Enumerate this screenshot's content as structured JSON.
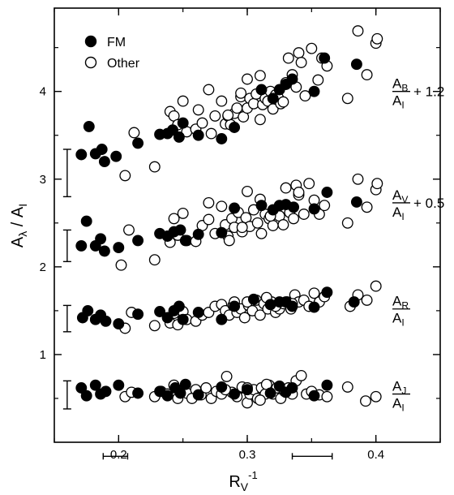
{
  "chart_data": {
    "type": "scatter",
    "xlabel": "R",
    "xlabel_sub": "V",
    "xlabel_sup": "-1",
    "ylabel_main": "A",
    "ylabel_sub": "λ",
    "ylabel_div": " / A",
    "ylabel_den_sub": "I",
    "xlim": [
      0.15,
      0.45
    ],
    "ylim": [
      0.0,
      4.95
    ],
    "x_ticks": [
      0.2,
      0.3,
      0.4
    ],
    "x_tick_labels": [
      "0.2",
      "0.3",
      "0.4"
    ],
    "y_ticks": [
      1,
      2,
      3,
      4
    ],
    "y_tick_labels": [
      "1",
      "2",
      "3",
      "4"
    ],
    "grid": false,
    "legend": {
      "placement": "top-left",
      "entries": [
        {
          "label": "FM",
          "marker": "filled-circle"
        },
        {
          "label": "Other",
          "marker": "open-circle"
        }
      ]
    },
    "series_labels": [
      {
        "num": "A",
        "num_sub": "B",
        "den": "A",
        "den_sub": "I",
        "suffix": "+ 1.2",
        "y": 4.0
      },
      {
        "num": "A",
        "num_sub": "V",
        "den": "A",
        "den_sub": "I",
        "suffix": "+ 0.5",
        "y": 2.73
      },
      {
        "num": "A",
        "num_sub": "R",
        "den": "A",
        "den_sub": "I",
        "suffix": "",
        "y": 1.52
      },
      {
        "num": "A",
        "num_sub": "J",
        "den": "A",
        "den_sub": "I",
        "suffix": "",
        "y": 0.55
      }
    ],
    "y_error_bars": [
      {
        "x": 0.16,
        "y_low": 2.8,
        "y_high": 3.34
      },
      {
        "x": 0.16,
        "y_low": 2.06,
        "y_high": 2.42
      },
      {
        "x": 0.16,
        "y_low": 1.26,
        "y_high": 1.56
      },
      {
        "x": 0.16,
        "y_low": 0.38,
        "y_high": 0.7
      }
    ],
    "x_error_bars": [
      {
        "y": -0.16,
        "x_low": 0.188,
        "x_high": 0.207
      },
      {
        "y": -0.16,
        "x_low": 0.335,
        "x_high": 0.366
      }
    ],
    "series": [
      {
        "marker": "filled",
        "band": "A_B",
        "x": [
          0.171,
          0.177,
          0.182,
          0.187,
          0.189,
          0.198,
          0.215,
          0.232,
          0.238,
          0.242,
          0.247,
          0.25,
          0.262,
          0.28,
          0.29,
          0.311,
          0.32,
          0.325,
          0.33,
          0.335,
          0.352,
          0.36,
          0.385
        ],
        "y": [
          3.28,
          3.6,
          3.29,
          3.34,
          3.2,
          3.26,
          3.41,
          3.51,
          3.52,
          3.56,
          3.48,
          3.64,
          3.5,
          3.46,
          3.59,
          4.02,
          3.92,
          4.02,
          4.08,
          4.14,
          4.0,
          4.38,
          4.31
        ]
      },
      {
        "marker": "open",
        "band": "A_B",
        "x": [
          0.205,
          0.212,
          0.228,
          0.24,
          0.243,
          0.246,
          0.25,
          0.253,
          0.26,
          0.265,
          0.27,
          0.275,
          0.28,
          0.283,
          0.285,
          0.287,
          0.29,
          0.292,
          0.295,
          0.297,
          0.3,
          0.302,
          0.305,
          0.307,
          0.31,
          0.312,
          0.314,
          0.316,
          0.318,
          0.32,
          0.322,
          0.324,
          0.326,
          0.328,
          0.33,
          0.332,
          0.335,
          0.338,
          0.34,
          0.342,
          0.345,
          0.35,
          0.355,
          0.358,
          0.362,
          0.378,
          0.386,
          0.393,
          0.4,
          0.401,
          0.3,
          0.31,
          0.285,
          0.295,
          0.262,
          0.272
        ],
        "y": [
          3.04,
          3.53,
          3.14,
          3.77,
          3.72,
          3.62,
          3.89,
          3.54,
          3.57,
          3.64,
          4.02,
          3.72,
          3.89,
          3.63,
          3.72,
          3.62,
          3.75,
          3.81,
          3.94,
          3.71,
          3.81,
          3.92,
          3.86,
          3.97,
          3.68,
          3.85,
          3.92,
          3.89,
          4.0,
          3.8,
          3.96,
          3.93,
          3.86,
          3.88,
          4.1,
          4.38,
          4.19,
          4.05,
          4.44,
          4.33,
          3.95,
          4.49,
          4.13,
          4.38,
          4.29,
          3.92,
          4.69,
          4.19,
          4.55,
          4.6,
          4.14,
          4.18,
          3.73,
          3.98,
          3.79,
          3.52
        ]
      },
      {
        "marker": "filled",
        "band": "A_V",
        "x": [
          0.171,
          0.175,
          0.182,
          0.186,
          0.189,
          0.2,
          0.215,
          0.232,
          0.238,
          0.243,
          0.248,
          0.252,
          0.262,
          0.28,
          0.29,
          0.311,
          0.32,
          0.325,
          0.33,
          0.336,
          0.352,
          0.362,
          0.385
        ],
        "y": [
          2.24,
          2.52,
          2.24,
          2.32,
          2.18,
          2.22,
          2.3,
          2.38,
          2.35,
          2.4,
          2.42,
          2.3,
          2.37,
          2.39,
          2.67,
          2.7,
          2.65,
          2.7,
          2.71,
          2.68,
          2.66,
          2.85,
          2.74
        ]
      },
      {
        "marker": "open",
        "band": "A_V",
        "x": [
          0.202,
          0.208,
          0.228,
          0.24,
          0.243,
          0.246,
          0.25,
          0.253,
          0.26,
          0.265,
          0.27,
          0.275,
          0.28,
          0.283,
          0.285,
          0.288,
          0.29,
          0.293,
          0.296,
          0.299,
          0.302,
          0.305,
          0.308,
          0.311,
          0.314,
          0.317,
          0.32,
          0.322,
          0.325,
          0.328,
          0.33,
          0.333,
          0.336,
          0.338,
          0.34,
          0.344,
          0.348,
          0.352,
          0.356,
          0.36,
          0.378,
          0.386,
          0.393,
          0.4,
          0.401,
          0.3,
          0.31,
          0.27,
          0.286,
          0.296,
          0.318,
          0.34
        ],
        "y": [
          2.02,
          2.42,
          2.08,
          2.28,
          2.55,
          2.36,
          2.61,
          2.3,
          2.29,
          2.47,
          2.73,
          2.38,
          2.69,
          2.48,
          2.35,
          2.55,
          2.45,
          2.62,
          2.4,
          2.56,
          2.46,
          2.65,
          2.5,
          2.38,
          2.6,
          2.55,
          2.47,
          2.62,
          2.58,
          2.48,
          2.9,
          2.62,
          2.55,
          2.93,
          2.82,
          2.6,
          2.95,
          2.76,
          2.6,
          2.7,
          2.5,
          3.0,
          2.68,
          2.88,
          2.95,
          2.86,
          2.77,
          2.54,
          2.3,
          2.45,
          2.58,
          2.85
        ]
      },
      {
        "marker": "filled",
        "band": "A_R",
        "x": [
          0.172,
          0.176,
          0.182,
          0.186,
          0.19,
          0.2,
          0.215,
          0.232,
          0.238,
          0.243,
          0.247,
          0.25,
          0.262,
          0.28,
          0.29,
          0.305,
          0.318,
          0.325,
          0.33,
          0.335,
          0.352,
          0.362,
          0.383
        ],
        "y": [
          1.42,
          1.5,
          1.4,
          1.45,
          1.38,
          1.35,
          1.46,
          1.49,
          1.42,
          1.5,
          1.55,
          1.4,
          1.48,
          1.4,
          1.55,
          1.63,
          1.57,
          1.6,
          1.6,
          1.55,
          1.54,
          1.71,
          1.6
        ]
      },
      {
        "marker": "open",
        "band": "A_R",
        "x": [
          0.205,
          0.21,
          0.228,
          0.24,
          0.243,
          0.246,
          0.25,
          0.253,
          0.26,
          0.265,
          0.27,
          0.275,
          0.28,
          0.283,
          0.286,
          0.289,
          0.292,
          0.295,
          0.298,
          0.301,
          0.304,
          0.307,
          0.31,
          0.313,
          0.316,
          0.319,
          0.322,
          0.325,
          0.328,
          0.331,
          0.334,
          0.337,
          0.34,
          0.344,
          0.348,
          0.352,
          0.356,
          0.36,
          0.38,
          0.386,
          0.393,
          0.4,
          0.3,
          0.315,
          0.335,
          0.29,
          0.322
        ],
        "y": [
          1.3,
          1.48,
          1.33,
          1.36,
          1.47,
          1.34,
          1.49,
          1.4,
          1.38,
          1.45,
          1.48,
          1.55,
          1.57,
          1.5,
          1.45,
          1.56,
          1.48,
          1.52,
          1.42,
          1.56,
          1.5,
          1.62,
          1.45,
          1.58,
          1.52,
          1.6,
          1.48,
          1.52,
          1.58,
          1.6,
          1.52,
          1.68,
          1.6,
          1.62,
          1.55,
          1.7,
          1.6,
          1.66,
          1.55,
          1.68,
          1.62,
          1.78,
          1.6,
          1.65,
          1.58,
          1.6,
          1.55
        ]
      },
      {
        "marker": "filled",
        "band": "A_J",
        "x": [
          0.171,
          0.175,
          0.182,
          0.186,
          0.19,
          0.2,
          0.215,
          0.232,
          0.238,
          0.244,
          0.248,
          0.252,
          0.262,
          0.28,
          0.29,
          0.3,
          0.318,
          0.325,
          0.33,
          0.335,
          0.352,
          0.362
        ],
        "y": [
          0.62,
          0.53,
          0.65,
          0.55,
          0.58,
          0.65,
          0.56,
          0.58,
          0.53,
          0.62,
          0.56,
          0.66,
          0.54,
          0.63,
          0.55,
          0.6,
          0.56,
          0.64,
          0.57,
          0.62,
          0.53,
          0.65
        ]
      },
      {
        "marker": "open",
        "band": "A_J",
        "x": [
          0.205,
          0.21,
          0.228,
          0.233,
          0.238,
          0.243,
          0.246,
          0.25,
          0.253,
          0.257,
          0.26,
          0.264,
          0.268,
          0.272,
          0.276,
          0.28,
          0.284,
          0.288,
          0.292,
          0.296,
          0.3,
          0.302,
          0.305,
          0.308,
          0.311,
          0.314,
          0.317,
          0.32,
          0.323,
          0.326,
          0.329,
          0.332,
          0.335,
          0.338,
          0.342,
          0.346,
          0.35,
          0.356,
          0.362,
          0.378,
          0.392,
          0.4,
          0.283,
          0.296,
          0.31,
          0.3,
          0.315
        ],
        "y": [
          0.52,
          0.57,
          0.52,
          0.58,
          0.55,
          0.65,
          0.5,
          0.6,
          0.56,
          0.5,
          0.6,
          0.54,
          0.62,
          0.5,
          0.58,
          0.55,
          0.75,
          0.57,
          0.52,
          0.62,
          0.45,
          0.55,
          0.6,
          0.5,
          0.62,
          0.55,
          0.65,
          0.55,
          0.62,
          0.5,
          0.58,
          0.62,
          0.55,
          0.7,
          0.76,
          0.55,
          0.58,
          0.54,
          0.52,
          0.63,
          0.47,
          0.52,
          0.6,
          0.63,
          0.48,
          0.62,
          0.66
        ]
      }
    ]
  }
}
